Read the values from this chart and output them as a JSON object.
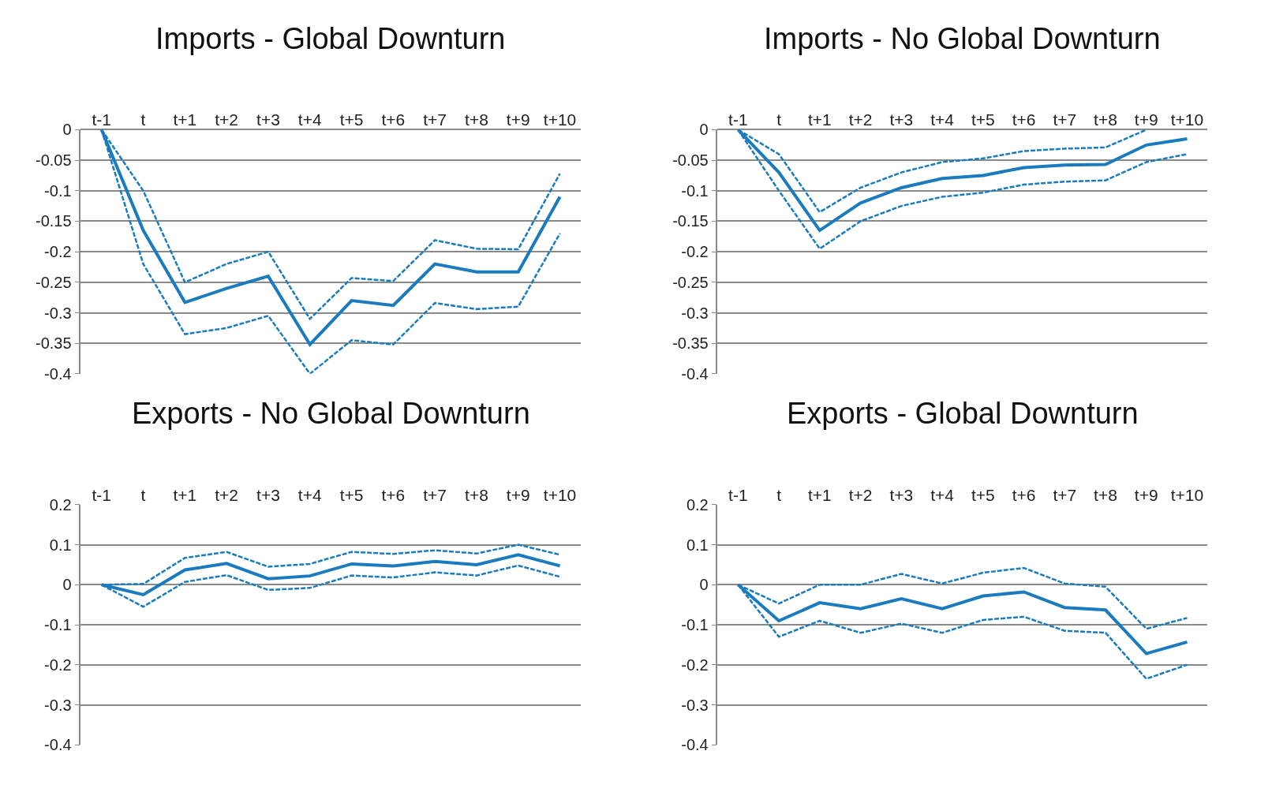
{
  "chart_data": [
    {
      "type": "line",
      "title": "Imports - Global Downturn",
      "categories": [
        "t-1",
        "t",
        "t+1",
        "t+2",
        "t+3",
        "t+4",
        "t+5",
        "t+6",
        "t+7",
        "t+8",
        "t+9",
        "t+10"
      ],
      "ylim": [
        -0.4,
        0
      ],
      "yticks": [
        0,
        -0.05,
        -0.1,
        -0.15,
        -0.2,
        -0.25,
        -0.3,
        -0.35,
        -0.4
      ],
      "grid": "y",
      "series": [
        {
          "color": "#1a7bbf",
          "line_style": "solid",
          "values": [
            0,
            -0.165,
            -0.283,
            -0.26,
            -0.24,
            -0.352,
            -0.28,
            -0.288,
            -0.22,
            -0.233,
            -0.233,
            -0.11
          ]
        },
        {
          "color": "#1a7bbf",
          "line_style": "dashed",
          "values": [
            0,
            -0.1,
            -0.25,
            -0.22,
            -0.2,
            -0.31,
            -0.243,
            -0.248,
            -0.181,
            -0.195,
            -0.196,
            -0.072
          ]
        },
        {
          "color": "#1a7bbf",
          "line_style": "dashed",
          "values": [
            0,
            -0.22,
            -0.335,
            -0.325,
            -0.305,
            -0.4,
            -0.345,
            -0.352,
            -0.284,
            -0.294,
            -0.29,
            -0.17
          ]
        }
      ]
    },
    {
      "type": "line",
      "title": "Imports - No Global Downturn",
      "categories": [
        "t-1",
        "t",
        "t+1",
        "t+2",
        "t+3",
        "t+4",
        "t+5",
        "t+6",
        "t+7",
        "t+8",
        "t+9",
        "t+10"
      ],
      "ylim": [
        -0.4,
        0
      ],
      "yticks": [
        0,
        -0.05,
        -0.1,
        -0.15,
        -0.2,
        -0.25,
        -0.3,
        -0.35,
        -0.4
      ],
      "grid": "y",
      "series": [
        {
          "color": "#1a7bbf",
          "line_style": "solid",
          "values": [
            0,
            -0.07,
            -0.165,
            -0.12,
            -0.095,
            -0.08,
            -0.075,
            -0.062,
            -0.058,
            -0.057,
            -0.025,
            -0.015
          ]
        },
        {
          "color": "#1a7bbf",
          "line_style": "dashed",
          "values": [
            0,
            -0.04,
            -0.135,
            -0.095,
            -0.07,
            -0.053,
            -0.047,
            -0.035,
            -0.031,
            -0.029,
            0,
            null
          ]
        },
        {
          "color": "#1a7bbf",
          "line_style": "dashed",
          "values": [
            0,
            -0.1,
            -0.195,
            -0.15,
            -0.125,
            -0.11,
            -0.103,
            -0.09,
            -0.085,
            -0.083,
            -0.053,
            -0.04
          ]
        }
      ]
    },
    {
      "type": "line",
      "title": "Exports - No Global Downturn",
      "categories": [
        "t-1",
        "t",
        "t+1",
        "t+2",
        "t+3",
        "t+4",
        "t+5",
        "t+6",
        "t+7",
        "t+8",
        "t+9",
        "t+10"
      ],
      "ylim": [
        -0.4,
        0.2
      ],
      "yticks": [
        0.2,
        0.1,
        0,
        -0.1,
        -0.2,
        -0.3,
        -0.4
      ],
      "grid": "y",
      "series": [
        {
          "color": "#1a7bbf",
          "line_style": "solid",
          "values": [
            0,
            -0.025,
            0.037,
            0.053,
            0.015,
            0.022,
            0.052,
            0.047,
            0.058,
            0.05,
            0.075,
            0.047
          ]
        },
        {
          "color": "#1a7bbf",
          "line_style": "dashed",
          "values": [
            0,
            0.002,
            0.067,
            0.082,
            0.045,
            0.052,
            0.082,
            0.077,
            0.086,
            0.078,
            0.1,
            0.075
          ]
        },
        {
          "color": "#1a7bbf",
          "line_style": "dashed",
          "values": [
            0,
            -0.055,
            0.007,
            0.024,
            -0.013,
            -0.008,
            0.023,
            0.018,
            0.031,
            0.023,
            0.048,
            0.02
          ]
        }
      ]
    },
    {
      "type": "line",
      "title": "Exports - Global Downturn",
      "categories": [
        "t-1",
        "t",
        "t+1",
        "t+2",
        "t+3",
        "t+4",
        "t+5",
        "t+6",
        "t+7",
        "t+8",
        "t+9",
        "t+10"
      ],
      "ylim": [
        -0.4,
        0.2
      ],
      "yticks": [
        0.2,
        0.1,
        0,
        -0.1,
        -0.2,
        -0.3,
        -0.4
      ],
      "grid": "y",
      "series": [
        {
          "color": "#1a7bbf",
          "line_style": "solid",
          "values": [
            0,
            -0.09,
            -0.045,
            -0.06,
            -0.035,
            -0.06,
            -0.028,
            -0.018,
            -0.057,
            -0.063,
            -0.172,
            -0.143
          ]
        },
        {
          "color": "#1a7bbf",
          "line_style": "dashed",
          "values": [
            0,
            -0.047,
            0.0,
            0.0,
            0.027,
            0.003,
            0.03,
            0.042,
            0.003,
            -0.005,
            -0.11,
            -0.083
          ]
        },
        {
          "color": "#1a7bbf",
          "line_style": "dashed",
          "values": [
            0,
            -0.13,
            -0.09,
            -0.12,
            -0.097,
            -0.12,
            -0.088,
            -0.08,
            -0.115,
            -0.12,
            -0.235,
            -0.2
          ]
        }
      ]
    }
  ]
}
